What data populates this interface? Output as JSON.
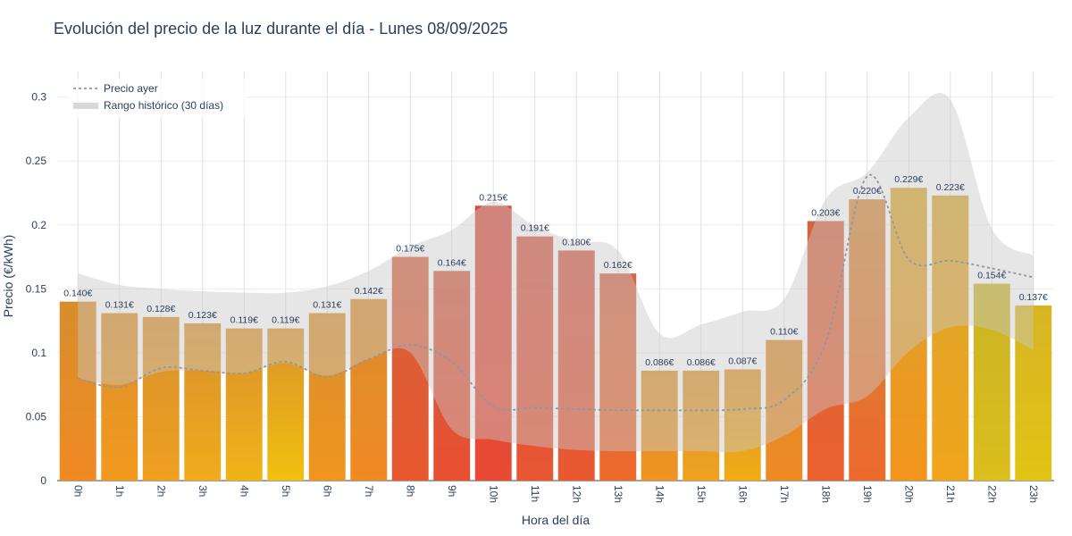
{
  "chart_data": {
    "type": "bar",
    "title": "Evolución del precio de la luz durante el día - Lunes 08/09/2025",
    "xlabel": "Hora del día",
    "ylabel": "Precio (€/kWh)",
    "ylim": [
      0,
      0.32
    ],
    "y_ticks": [
      0,
      0.05,
      0.1,
      0.15,
      0.2,
      0.25,
      0.3
    ],
    "y_tick_labels": [
      "0",
      "0.05",
      "0.1",
      "0.15",
      "0.2",
      "0.25",
      "0.3"
    ],
    "grid": true,
    "legend_position": "top-left",
    "categories": [
      "0h",
      "1h",
      "2h",
      "3h",
      "4h",
      "5h",
      "6h",
      "7h",
      "8h",
      "9h",
      "10h",
      "11h",
      "12h",
      "13h",
      "14h",
      "15h",
      "16h",
      "17h",
      "18h",
      "19h",
      "20h",
      "21h",
      "22h",
      "23h"
    ],
    "values": [
      0.14,
      0.131,
      0.128,
      0.123,
      0.119,
      0.119,
      0.131,
      0.142,
      0.175,
      0.164,
      0.215,
      0.191,
      0.18,
      0.162,
      0.086,
      0.086,
      0.087,
      0.11,
      0.203,
      0.22,
      0.229,
      0.223,
      0.154,
      0.137
    ],
    "value_labels": [
      "0.140€",
      "0.131€",
      "0.128€",
      "0.123€",
      "0.119€",
      "0.119€",
      "0.131€",
      "0.142€",
      "0.175€",
      "0.164€",
      "0.215€",
      "0.191€",
      "0.180€",
      "0.162€",
      "0.086€",
      "0.086€",
      "0.087€",
      "0.110€",
      "0.203€",
      "0.220€",
      "0.229€",
      "0.223€",
      "0.154€",
      "0.137€"
    ],
    "bar_colors_top": [
      "#f08a22",
      "#f39a1e",
      "#efa020",
      "#f0ac1c",
      "#f1b318",
      "#f1c00f",
      "#f0951f",
      "#f08a22",
      "#e8572e",
      "#e84e30",
      "#e84a33",
      "#e95632",
      "#ea5830",
      "#ee6a2a",
      "#f09322",
      "#f0a21e",
      "#f1ac16",
      "#f08a22",
      "#ec622e",
      "#ed6a2c",
      "#f2951c",
      "#f1a51c",
      "#dcbe1c",
      "#e2c415"
    ],
    "bar_colors_mid": [
      "#d88e2c",
      "#d98f2c",
      "#d7902d",
      "#d8902d",
      "#d9912d",
      "#d9922d",
      "#d8902d",
      "#d98d2d",
      "#d4633e",
      "#d35e42",
      "#d84d3d",
      "#d45845",
      "#d35946",
      "#d46545",
      "#d8922d",
      "#d8932d",
      "#d9942d",
      "#d88d2c",
      "#d36340",
      "#d5883a",
      "#d9a52f",
      "#d8a52e",
      "#c9b227",
      "#d6b522"
    ],
    "series": [
      {
        "name": "Precio ayer",
        "type": "line",
        "color": "#8e979f",
        "values": [
          0.08,
          0.073,
          0.088,
          0.086,
          0.084,
          0.093,
          0.081,
          0.095,
          0.106,
          0.093,
          0.058,
          0.057,
          0.056,
          0.055,
          0.055,
          0.055,
          0.056,
          0.063,
          0.108,
          0.238,
          0.173,
          0.172,
          0.166,
          0.159
        ]
      },
      {
        "name": "Rango histórico (30 días)",
        "type": "area",
        "color": "#dcdcdc",
        "lower": [
          0.08,
          0.075,
          0.085,
          0.086,
          0.084,
          0.092,
          0.082,
          0.095,
          0.1,
          0.04,
          0.032,
          0.027,
          0.024,
          0.023,
          0.023,
          0.023,
          0.023,
          0.035,
          0.056,
          0.066,
          0.101,
          0.12,
          0.118,
          0.102
        ],
        "upper": [
          0.162,
          0.153,
          0.15,
          0.148,
          0.147,
          0.147,
          0.152,
          0.164,
          0.183,
          0.196,
          0.218,
          0.199,
          0.187,
          0.18,
          0.115,
          0.122,
          0.132,
          0.142,
          0.22,
          0.241,
          0.284,
          0.298,
          0.197,
          0.176
        ]
      }
    ]
  }
}
